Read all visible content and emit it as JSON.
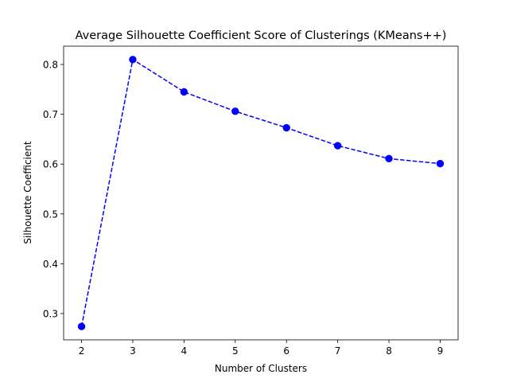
{
  "chart_data": {
    "type": "line",
    "title": "Average Silhouette Coefficient Score of Clusterings (KMeans++)",
    "xlabel": "Number of Clusters",
    "ylabel": "Silhouette Coefficient",
    "x": [
      2,
      3,
      4,
      5,
      6,
      7,
      8,
      9
    ],
    "series": [
      {
        "values": [
          0.274,
          0.81,
          0.745,
          0.706,
          0.673,
          0.637,
          0.611,
          0.601
        ],
        "color": "#0000ff",
        "line_style": "dashed",
        "marker": "circle"
      }
    ],
    "xticks": [
      2,
      3,
      4,
      5,
      6,
      7,
      8,
      9
    ],
    "yticks": [
      0.3,
      0.4,
      0.5,
      0.6,
      0.7,
      0.8
    ],
    "xlim": [
      1.65,
      9.35
    ],
    "ylim": [
      0.2472,
      0.8368
    ],
    "grid": false,
    "legend": "none"
  }
}
